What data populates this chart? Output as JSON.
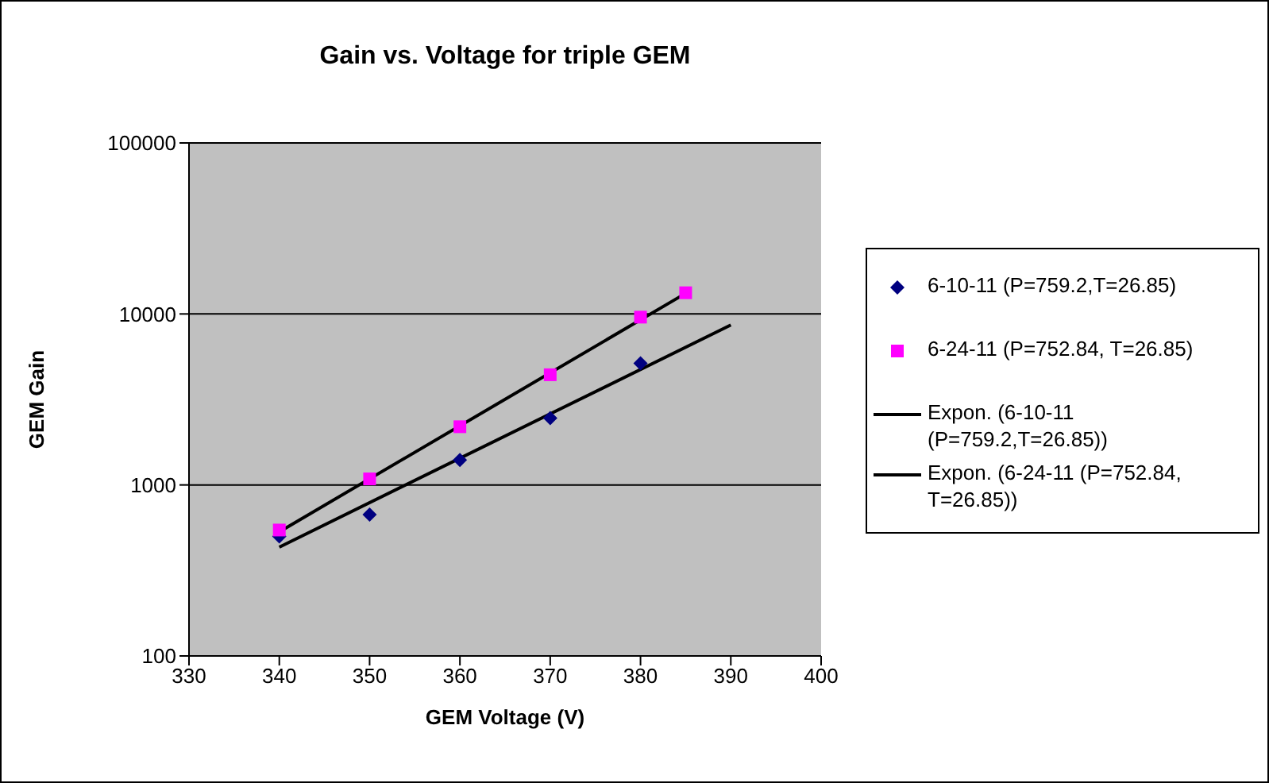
{
  "chart_data": {
    "type": "scatter",
    "title": "Gain vs. Voltage for triple GEM",
    "xlabel": "GEM Voltage (V)",
    "ylabel": "GEM Gain",
    "xlim": [
      330,
      400
    ],
    "xticks": [
      330,
      340,
      350,
      360,
      370,
      380,
      390,
      400
    ],
    "ylim": [
      100,
      100000
    ],
    "yticks": [
      100,
      1000,
      10000,
      100000
    ],
    "log": "y",
    "grid": "y",
    "legend": "right",
    "series": [
      {
        "name": "6-10-11 (P=759.2,T=26.85)",
        "marker": "diamond",
        "color": "#000080",
        "x": [
          340,
          350,
          360,
          370,
          380
        ],
        "values": [
          500,
          670,
          1400,
          2460,
          5150
        ]
      },
      {
        "name": "6-24-11 (P=752.84, T=26.85)",
        "marker": "square",
        "color": "#ff00ff",
        "x": [
          340,
          350,
          360,
          370,
          380,
          385
        ],
        "values": [
          545,
          1085,
          2190,
          4410,
          9580,
          13300
        ]
      },
      {
        "name": "Expon. (6-10-11 (P=759.2,T=26.85))",
        "type": "line",
        "line_style": "solid",
        "color": "#000000",
        "x": [
          340,
          390
        ],
        "values": [
          433,
          8610
        ]
      },
      {
        "name": "Expon. (6-24-11 (P=752.84, T=26.85))",
        "type": "line",
        "line_style": "solid",
        "color": "#000000",
        "x": [
          340,
          385
        ],
        "values": [
          532,
          13200
        ]
      }
    ]
  }
}
